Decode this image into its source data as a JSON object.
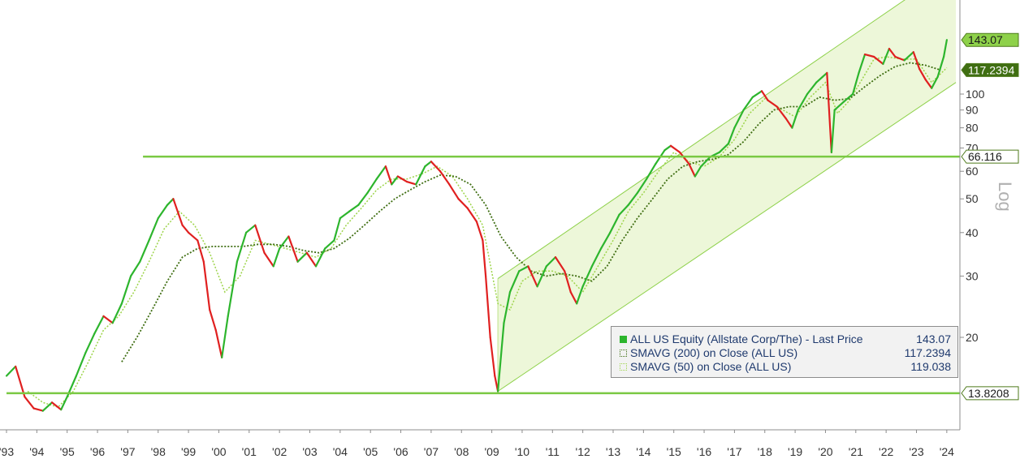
{
  "chart_data": {
    "type": "line",
    "scale": "log",
    "scale_label": "Log",
    "x_ticks": [
      "'93",
      "'94",
      "'95",
      "'96",
      "'97",
      "'98",
      "'99",
      "'00",
      "'01",
      "'02",
      "'03",
      "'04",
      "'05",
      "'06",
      "'07",
      "'08",
      "'09",
      "'10",
      "'11",
      "'12",
      "'13",
      "'14",
      "'15",
      "'16",
      "'17",
      "'18",
      "'19",
      "'20",
      "'21",
      "'22",
      "'23",
      "'24"
    ],
    "y_ticks": [
      20,
      30,
      40,
      50,
      60,
      70,
      80,
      90,
      100
    ],
    "ylim": [
      11.5,
      200
    ],
    "xlim": [
      1993.0,
      2024.5
    ],
    "series": [
      {
        "name": "ALL US Equity (Allstate Corp/The) - Last Price",
        "legend_value": "143.07",
        "color": "#2db52d",
        "points": [
          [
            1993.0,
            15.5
          ],
          [
            1993.3,
            16.5
          ],
          [
            1993.6,
            13.5
          ],
          [
            1993.9,
            12.5
          ],
          [
            1994.2,
            12.3
          ],
          [
            1994.5,
            13.0
          ],
          [
            1994.8,
            12.4
          ],
          [
            1995.0,
            13.5
          ],
          [
            1995.3,
            15.5
          ],
          [
            1995.6,
            18.0
          ],
          [
            1995.9,
            20.5
          ],
          [
            1996.2,
            23.0
          ],
          [
            1996.5,
            22.0
          ],
          [
            1996.8,
            25.0
          ],
          [
            1997.1,
            30.0
          ],
          [
            1997.4,
            33.0
          ],
          [
            1997.7,
            38.0
          ],
          [
            1998.0,
            44.0
          ],
          [
            1998.3,
            48.0
          ],
          [
            1998.5,
            50.0
          ],
          [
            1998.8,
            42.0
          ],
          [
            1999.0,
            40.0
          ],
          [
            1999.3,
            38.0
          ],
          [
            1999.5,
            33.0
          ],
          [
            1999.7,
            24.0
          ],
          [
            1999.9,
            21.0
          ],
          [
            2000.1,
            17.5
          ],
          [
            2000.3,
            23.0
          ],
          [
            2000.6,
            33.0
          ],
          [
            2000.9,
            40.0
          ],
          [
            2001.2,
            42.0
          ],
          [
            2001.5,
            35.0
          ],
          [
            2001.8,
            32.0
          ],
          [
            2002.0,
            36.0
          ],
          [
            2002.3,
            39.0
          ],
          [
            2002.6,
            33.0
          ],
          [
            2002.9,
            35.0
          ],
          [
            2003.2,
            32.0
          ],
          [
            2003.5,
            36.0
          ],
          [
            2003.8,
            38.0
          ],
          [
            2004.0,
            44.0
          ],
          [
            2004.3,
            46.0
          ],
          [
            2004.6,
            48.0
          ],
          [
            2004.9,
            52.0
          ],
          [
            2005.2,
            57.0
          ],
          [
            2005.5,
            62.0
          ],
          [
            2005.7,
            55.0
          ],
          [
            2005.9,
            58.0
          ],
          [
            2006.2,
            56.0
          ],
          [
            2006.5,
            55.0
          ],
          [
            2006.8,
            62.0
          ],
          [
            2007.0,
            64.0
          ],
          [
            2007.3,
            60.0
          ],
          [
            2007.6,
            55.0
          ],
          [
            2007.9,
            50.0
          ],
          [
            2008.2,
            47.0
          ],
          [
            2008.5,
            43.0
          ],
          [
            2008.7,
            38.0
          ],
          [
            2008.8,
            30.0
          ],
          [
            2008.95,
            20.0
          ],
          [
            2009.1,
            15.5
          ],
          [
            2009.2,
            14.0
          ],
          [
            2009.4,
            22.0
          ],
          [
            2009.6,
            27.0
          ],
          [
            2009.9,
            31.0
          ],
          [
            2010.2,
            32.0
          ],
          [
            2010.5,
            28.0
          ],
          [
            2010.8,
            32.0
          ],
          [
            2011.1,
            34.0
          ],
          [
            2011.4,
            31.0
          ],
          [
            2011.6,
            27.0
          ],
          [
            2011.8,
            25.0
          ],
          [
            2012.0,
            28.0
          ],
          [
            2012.3,
            32.0
          ],
          [
            2012.6,
            36.0
          ],
          [
            2012.9,
            40.0
          ],
          [
            2013.2,
            45.0
          ],
          [
            2013.5,
            48.0
          ],
          [
            2013.8,
            52.0
          ],
          [
            2014.1,
            57.0
          ],
          [
            2014.4,
            63.0
          ],
          [
            2014.7,
            69.0
          ],
          [
            2014.9,
            71.0
          ],
          [
            2015.2,
            68.0
          ],
          [
            2015.5,
            63.0
          ],
          [
            2015.7,
            58.0
          ],
          [
            2015.9,
            62.0
          ],
          [
            2016.2,
            66.0
          ],
          [
            2016.5,
            68.0
          ],
          [
            2016.8,
            72.0
          ],
          [
            2017.0,
            80.0
          ],
          [
            2017.3,
            90.0
          ],
          [
            2017.6,
            98.0
          ],
          [
            2017.9,
            102.0
          ],
          [
            2018.1,
            96.0
          ],
          [
            2018.4,
            92.0
          ],
          [
            2018.7,
            85.0
          ],
          [
            2018.9,
            80.0
          ],
          [
            2019.1,
            90.0
          ],
          [
            2019.4,
            100.0
          ],
          [
            2019.7,
            108.0
          ],
          [
            2019.9,
            112.0
          ],
          [
            2020.05,
            115.0
          ],
          [
            2020.2,
            68.0
          ],
          [
            2020.3,
            90.0
          ],
          [
            2020.6,
            95.0
          ],
          [
            2020.9,
            100.0
          ],
          [
            2021.1,
            115.0
          ],
          [
            2021.3,
            130.0
          ],
          [
            2021.6,
            128.0
          ],
          [
            2021.9,
            122.0
          ],
          [
            2022.1,
            135.0
          ],
          [
            2022.3,
            128.0
          ],
          [
            2022.6,
            125.0
          ],
          [
            2022.9,
            132.0
          ],
          [
            2023.1,
            118.0
          ],
          [
            2023.3,
            110.0
          ],
          [
            2023.5,
            104.0
          ],
          [
            2023.7,
            112.0
          ],
          [
            2023.9,
            128.0
          ],
          [
            2024.0,
            143.07
          ]
        ]
      },
      {
        "name": "SMAVG (200) on Close (ALL US)",
        "legend_value": "117.2394",
        "color": "#3f6e12",
        "points": [
          [
            1996.8,
            17.0
          ],
          [
            1997.3,
            20.0
          ],
          [
            1997.8,
            24.0
          ],
          [
            1998.3,
            29.0
          ],
          [
            1998.8,
            34.0
          ],
          [
            1999.3,
            36.0
          ],
          [
            1999.8,
            36.5
          ],
          [
            2000.3,
            36.5
          ],
          [
            2000.8,
            36.5
          ],
          [
            2001.3,
            37.0
          ],
          [
            2001.8,
            37.0
          ],
          [
            2002.3,
            36.5
          ],
          [
            2002.8,
            35.5
          ],
          [
            2003.3,
            35.0
          ],
          [
            2003.8,
            36.0
          ],
          [
            2004.3,
            38.5
          ],
          [
            2004.8,
            42.0
          ],
          [
            2005.3,
            46.0
          ],
          [
            2005.8,
            50.0
          ],
          [
            2006.3,
            53.0
          ],
          [
            2006.8,
            56.0
          ],
          [
            2007.3,
            58.5
          ],
          [
            2007.8,
            58.0
          ],
          [
            2008.3,
            55.0
          ],
          [
            2008.8,
            48.0
          ],
          [
            2009.3,
            39.0
          ],
          [
            2009.8,
            34.0
          ],
          [
            2010.3,
            31.0
          ],
          [
            2010.8,
            30.0
          ],
          [
            2011.3,
            30.5
          ],
          [
            2011.8,
            30.0
          ],
          [
            2012.3,
            29.0
          ],
          [
            2012.8,
            32.0
          ],
          [
            2013.3,
            38.0
          ],
          [
            2013.8,
            44.0
          ],
          [
            2014.3,
            50.0
          ],
          [
            2014.8,
            57.0
          ],
          [
            2015.3,
            62.0
          ],
          [
            2015.8,
            64.0
          ],
          [
            2016.3,
            65.0
          ],
          [
            2016.8,
            67.0
          ],
          [
            2017.3,
            73.0
          ],
          [
            2017.8,
            82.0
          ],
          [
            2018.3,
            90.0
          ],
          [
            2018.8,
            92.0
          ],
          [
            2019.3,
            92.0
          ],
          [
            2019.8,
            98.0
          ],
          [
            2020.3,
            96.0
          ],
          [
            2020.8,
            97.0
          ],
          [
            2021.3,
            105.0
          ],
          [
            2021.8,
            113.0
          ],
          [
            2022.3,
            120.0
          ],
          [
            2022.8,
            123.0
          ],
          [
            2023.3,
            121.0
          ],
          [
            2023.8,
            117.2394
          ]
        ]
      },
      {
        "name": "SMAVG (50) on Close (ALL US)",
        "legend_value": "119.038",
        "color": "#9dd44a",
        "points": [
          [
            1993.7,
            14.0
          ],
          [
            1994.2,
            13.0
          ],
          [
            1994.7,
            12.6
          ],
          [
            1995.2,
            14.0
          ],
          [
            1995.7,
            17.0
          ],
          [
            1996.2,
            21.0
          ],
          [
            1996.7,
            23.0
          ],
          [
            1997.2,
            27.0
          ],
          [
            1997.7,
            33.0
          ],
          [
            1998.2,
            41.0
          ],
          [
            1998.7,
            46.0
          ],
          [
            1999.2,
            42.0
          ],
          [
            1999.7,
            35.0
          ],
          [
            2000.2,
            27.0
          ],
          [
            2000.7,
            30.0
          ],
          [
            2001.2,
            38.0
          ],
          [
            2001.7,
            37.0
          ],
          [
            2002.2,
            36.0
          ],
          [
            2002.7,
            35.0
          ],
          [
            2003.2,
            34.0
          ],
          [
            2003.7,
            36.0
          ],
          [
            2004.2,
            42.0
          ],
          [
            2004.7,
            47.0
          ],
          [
            2005.2,
            53.0
          ],
          [
            2005.7,
            57.0
          ],
          [
            2006.2,
            57.0
          ],
          [
            2006.7,
            59.0
          ],
          [
            2007.2,
            62.0
          ],
          [
            2007.7,
            58.0
          ],
          [
            2008.2,
            50.0
          ],
          [
            2008.7,
            42.0
          ],
          [
            2009.2,
            25.0
          ],
          [
            2009.6,
            24.0
          ],
          [
            2010.0,
            29.0
          ],
          [
            2010.5,
            31.0
          ],
          [
            2011.0,
            31.0
          ],
          [
            2011.5,
            30.0
          ],
          [
            2012.0,
            27.0
          ],
          [
            2012.5,
            32.0
          ],
          [
            2013.0,
            38.0
          ],
          [
            2013.5,
            46.0
          ],
          [
            2014.0,
            52.0
          ],
          [
            2014.5,
            60.0
          ],
          [
            2015.0,
            68.0
          ],
          [
            2015.5,
            64.0
          ],
          [
            2016.0,
            62.0
          ],
          [
            2016.5,
            66.0
          ],
          [
            2017.0,
            74.0
          ],
          [
            2017.5,
            88.0
          ],
          [
            2018.0,
            97.0
          ],
          [
            2018.5,
            91.0
          ],
          [
            2019.0,
            86.0
          ],
          [
            2019.5,
            98.0
          ],
          [
            2020.0,
            108.0
          ],
          [
            2020.4,
            88.0
          ],
          [
            2020.8,
            96.0
          ],
          [
            2021.2,
            110.0
          ],
          [
            2021.6,
            126.0
          ],
          [
            2022.0,
            128.0
          ],
          [
            2022.5,
            126.0
          ],
          [
            2023.0,
            126.0
          ],
          [
            2023.5,
            108.0
          ],
          [
            2024.0,
            119.038
          ]
        ]
      }
    ],
    "horizontal_lines": [
      {
        "value": 66.116,
        "label": "66.116",
        "x_start": 1997.5
      },
      {
        "value": 13.8208,
        "label": "13.8208",
        "x_start": 1993.0
      }
    ],
    "channel": {
      "lower": [
        [
          2009.2,
          14.0
        ],
        [
          2024.3,
          108.0
        ]
      ],
      "upper": [
        [
          2009.2,
          29.5
        ],
        [
          2024.3,
          235.0
        ]
      ]
    },
    "right_price_labels": [
      {
        "label": "143.07",
        "value": 143.07
      },
      {
        "label": "117.2394",
        "value": 117.2394
      }
    ]
  }
}
